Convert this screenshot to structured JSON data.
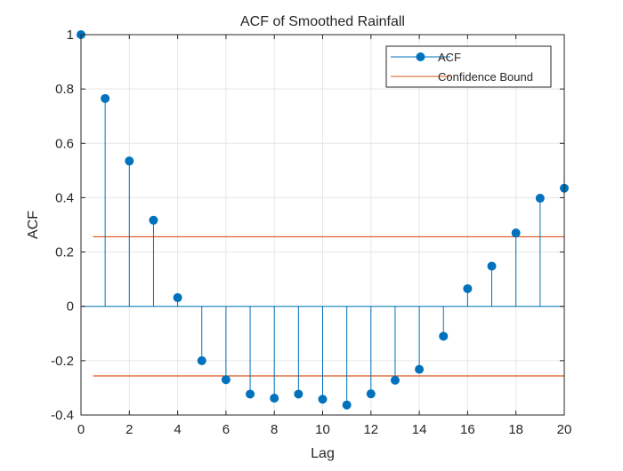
{
  "chart_data": {
    "type": "stem",
    "title": "ACF of Smoothed Rainfall",
    "xlabel": "Lag",
    "ylabel": "ACF",
    "xlim": [
      0,
      20
    ],
    "ylim": [
      -0.4,
      1
    ],
    "xticks": [
      0,
      2,
      4,
      6,
      8,
      10,
      12,
      14,
      16,
      18,
      20
    ],
    "yticks": [
      -0.4,
      -0.2,
      0,
      0.2,
      0.4,
      0.6,
      0.8,
      1
    ],
    "ytick_labels": [
      "-0.4",
      "-0.2",
      "0",
      "0.2",
      "0.4",
      "0.6",
      "0.8",
      "1"
    ],
    "grid": true,
    "legend_position": "top-right",
    "series": [
      {
        "name": "ACF",
        "color": "#0072BD",
        "x": [
          0,
          1,
          2,
          3,
          4,
          5,
          6,
          7,
          8,
          9,
          10,
          11,
          12,
          13,
          14,
          15,
          16,
          17,
          18,
          19,
          20
        ],
        "values": [
          1.0,
          0.765,
          0.535,
          0.317,
          0.032,
          -0.2,
          -0.27,
          -0.323,
          -0.338,
          -0.323,
          -0.342,
          -0.363,
          -0.322,
          -0.272,
          -0.232,
          -0.11,
          0.065,
          0.148,
          0.27,
          0.398,
          0.435
        ]
      }
    ],
    "confidence_bound": {
      "name": "Confidence Bound",
      "color": "#D95319",
      "x_range": [
        0.5,
        20
      ],
      "upper": 0.256,
      "lower": -0.256
    }
  }
}
